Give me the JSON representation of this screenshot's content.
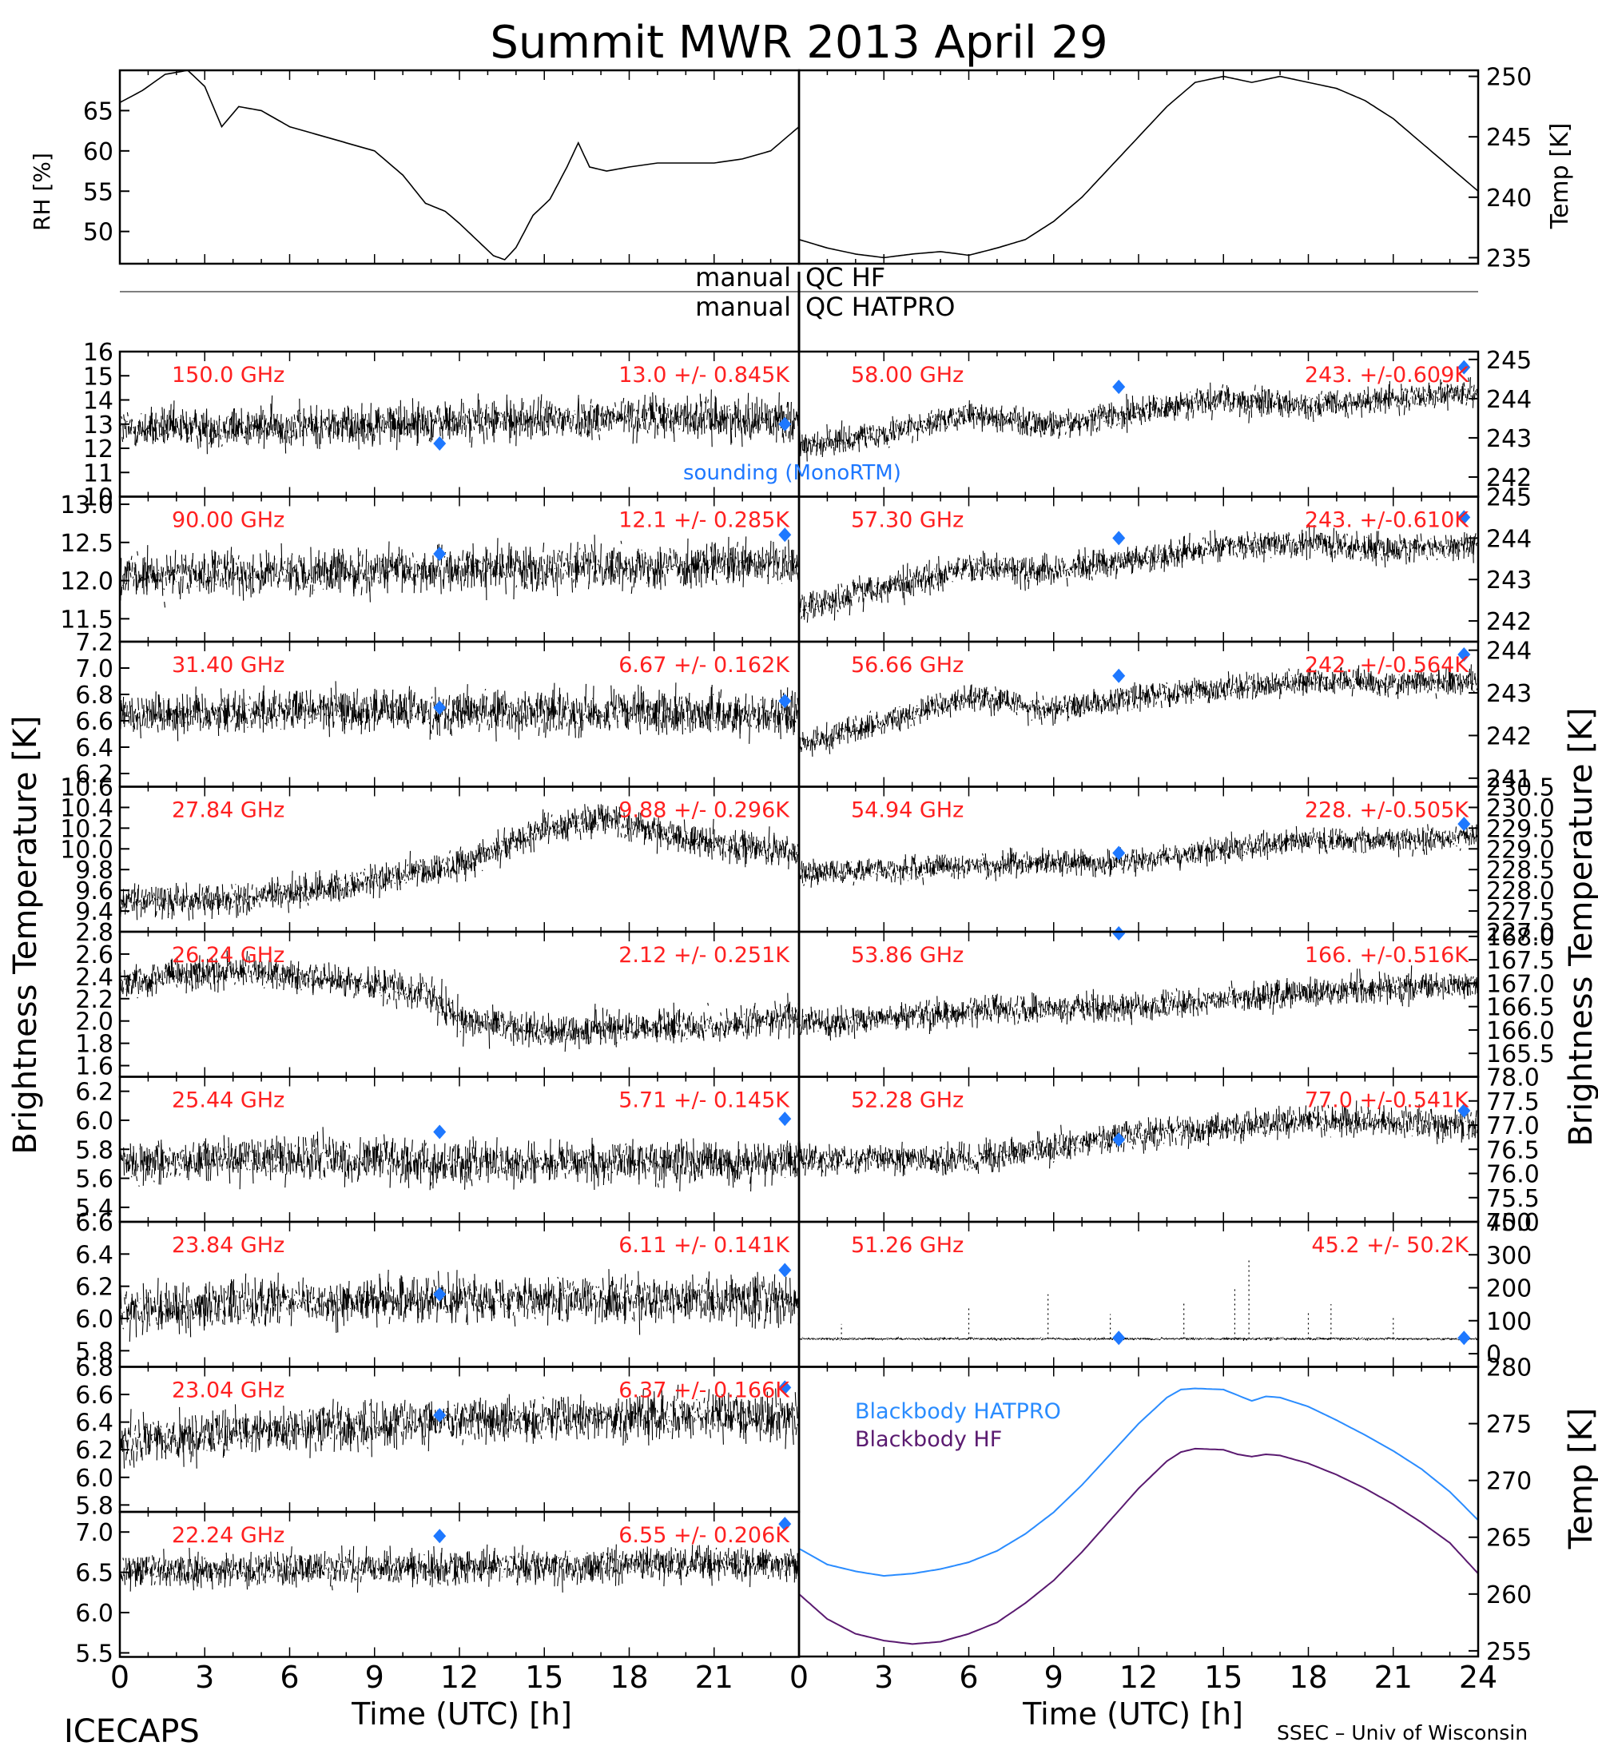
{
  "title": "Summit MWR 2013 April 29",
  "footer": {
    "left": "ICECAPS",
    "right": "SSEC – Univ of Wisconsin"
  },
  "axes_labels": {
    "rh": "RH [%]",
    "temp_top": "Temp [K]",
    "tb_left": "Brightness Temperature [K]",
    "tb_right": "Brightness Temperature [K]",
    "temp_bottom": "Temp [K]",
    "xlabel": "Time (UTC) [h]"
  },
  "qc": {
    "hf_left": "manual",
    "hf_right": "QC HF",
    "hatpro_left": "manual",
    "hatpro_right": "QC HATPRO"
  },
  "sounding_label": "sounding (MonoRTM)",
  "blackbody": {
    "hatpro_label": "Blackbody HATPRO",
    "hf_label": "Blackbody HF"
  },
  "colors": {
    "label_red": "#ff2020",
    "sounding_blue": "#1e78ff",
    "hatpro_line": "#2a8cff",
    "hf_line": "#5a1a70",
    "data": "#000000"
  },
  "chart_data": [
    {
      "type": "line",
      "id": "rh",
      "ylabel": "RH [%]",
      "xlim": [
        0,
        24
      ],
      "ylim": [
        46,
        70
      ],
      "yticks": [
        50,
        55,
        60,
        65
      ],
      "x": [
        0,
        0.8,
        1.6,
        2.4,
        3.0,
        3.6,
        4.2,
        5.0,
        6.0,
        7.0,
        8.0,
        9.0,
        10.0,
        10.8,
        11.5,
        12.0,
        12.6,
        13.2,
        13.6,
        14.0,
        14.6,
        15.2,
        15.8,
        16.2,
        16.6,
        17.2,
        18.0,
        19.0,
        20.0,
        21.0,
        22.0,
        23.0,
        24.0
      ],
      "y": [
        66,
        67.5,
        69.5,
        70,
        68,
        63,
        65.5,
        65,
        63,
        62,
        61,
        60,
        57,
        53.5,
        52.5,
        51,
        49,
        47,
        46.5,
        48,
        52,
        54,
        58,
        61,
        58,
        57.5,
        58,
        58.5,
        58.5,
        58.5,
        59,
        60,
        63
      ]
    },
    {
      "type": "line",
      "id": "temp",
      "ylabel": "Temp [K]",
      "xlim": [
        0,
        24
      ],
      "ylim": [
        234.5,
        250.5
      ],
      "yticks": [
        235,
        240,
        245,
        250
      ],
      "x": [
        0,
        1,
        2,
        3,
        4,
        5,
        6,
        7,
        8,
        9,
        10,
        11,
        12,
        13,
        14,
        15,
        16,
        17,
        18,
        19,
        20,
        21,
        22,
        23,
        24
      ],
      "y": [
        236.5,
        235.8,
        235.3,
        235,
        235.3,
        235.5,
        235.2,
        235.8,
        236.5,
        238,
        240,
        242.5,
        245,
        247.5,
        249.5,
        250,
        249.5,
        250,
        249.5,
        249,
        248,
        246.5,
        244.5,
        242.5,
        240.5
      ]
    },
    {
      "type": "scatter",
      "id": "ch150",
      "freq": "150.0 GHz",
      "stats": "13.0 +/- 0.845K",
      "ylim": [
        10,
        16
      ],
      "yticks": [
        10,
        11,
        12,
        13,
        14,
        15,
        16
      ],
      "trend_x": [
        0,
        6,
        12,
        18,
        24
      ],
      "trend_y": [
        12.8,
        12.9,
        13.1,
        13.3,
        13.2
      ],
      "spread": 0.845,
      "sounding": [
        {
          "x": 11.3,
          "y": 12.2
        },
        {
          "x": 23.5,
          "y": 13.0
        }
      ]
    },
    {
      "type": "scatter",
      "id": "ch90",
      "freq": "90.00 GHz",
      "stats": "12.1 +/- 0.285K",
      "ylim": [
        11.2,
        13.1
      ],
      "yticks": [
        11.5,
        12.0,
        12.5,
        13.0
      ],
      "trend_x": [
        0,
        6,
        12,
        18,
        24
      ],
      "trend_y": [
        12.05,
        12.1,
        12.15,
        12.2,
        12.2
      ],
      "spread": 0.285,
      "sounding": [
        {
          "x": 11.3,
          "y": 12.35
        },
        {
          "x": 23.5,
          "y": 12.6
        }
      ]
    },
    {
      "type": "scatter",
      "id": "ch31",
      "freq": "31.40 GHz",
      "stats": "6.67 +/- 0.162K",
      "ylim": [
        6.1,
        7.2
      ],
      "yticks": [
        6.2,
        6.4,
        6.6,
        6.8,
        7.0,
        7.2
      ],
      "trend_x": [
        0,
        6,
        12,
        18,
        24
      ],
      "trend_y": [
        6.65,
        6.68,
        6.67,
        6.66,
        6.65
      ],
      "spread": 0.162,
      "sounding": [
        {
          "x": 11.3,
          "y": 6.7
        },
        {
          "x": 23.5,
          "y": 6.75
        }
      ]
    },
    {
      "type": "scatter",
      "id": "ch27",
      "freq": "27.84 GHz",
      "stats": "9.88 +/- 0.296K",
      "ylim": [
        9.2,
        10.6
      ],
      "yticks": [
        9.4,
        9.6,
        9.8,
        10.0,
        10.2,
        10.4,
        10.6
      ],
      "trend_x": [
        0,
        4,
        8,
        12,
        15,
        17,
        20,
        24
      ],
      "trend_y": [
        9.5,
        9.5,
        9.65,
        9.85,
        10.2,
        10.3,
        10.1,
        9.95
      ],
      "spread": 0.15,
      "sounding": []
    },
    {
      "type": "scatter",
      "id": "ch26",
      "freq": "26.24 GHz",
      "stats": "2.12 +/- 0.251K",
      "ylim": [
        1.5,
        2.8
      ],
      "yticks": [
        1.6,
        1.8,
        2.0,
        2.2,
        2.4,
        2.6,
        2.8
      ],
      "trend_x": [
        0,
        4,
        8,
        11,
        12,
        15,
        18,
        21,
        24
      ],
      "trend_y": [
        2.35,
        2.45,
        2.35,
        2.25,
        2.0,
        1.9,
        1.95,
        1.95,
        2.05
      ],
      "spread": 0.15,
      "sounding": []
    },
    {
      "type": "scatter",
      "id": "ch25",
      "freq": "25.44 GHz",
      "stats": "5.71 +/- 0.145K",
      "ylim": [
        5.3,
        6.3
      ],
      "yticks": [
        5.4,
        5.6,
        5.8,
        6.0,
        6.2
      ],
      "trend_x": [
        0,
        6,
        12,
        18,
        24
      ],
      "trend_y": [
        5.7,
        5.75,
        5.7,
        5.72,
        5.7
      ],
      "spread": 0.145,
      "sounding": [
        {
          "x": 11.3,
          "y": 5.92
        },
        {
          "x": 23.5,
          "y": 6.01
        }
      ]
    },
    {
      "type": "scatter",
      "id": "ch23_84",
      "freq": "23.84 GHz",
      "stats": "6.11 +/- 0.141K",
      "ylim": [
        5.7,
        6.6
      ],
      "yticks": [
        5.8,
        6.0,
        6.2,
        6.4,
        6.6
      ],
      "trend_x": [
        0,
        6,
        12,
        18,
        24
      ],
      "trend_y": [
        6.05,
        6.1,
        6.12,
        6.12,
        6.1
      ],
      "spread": 0.141,
      "sounding": [
        {
          "x": 11.3,
          "y": 6.15
        },
        {
          "x": 23.5,
          "y": 6.3
        }
      ]
    },
    {
      "type": "scatter",
      "id": "ch23_04",
      "freq": "23.04 GHz",
      "stats": "6.37 +/- 0.166K",
      "ylim": [
        5.75,
        6.8
      ],
      "yticks": [
        5.8,
        6.0,
        6.2,
        6.4,
        6.6,
        6.8
      ],
      "trend_x": [
        0,
        6,
        12,
        18,
        24
      ],
      "trend_y": [
        6.25,
        6.35,
        6.4,
        6.45,
        6.45
      ],
      "spread": 0.166,
      "sounding": [
        {
          "x": 11.3,
          "y": 6.45
        },
        {
          "x": 23.5,
          "y": 6.65
        }
      ]
    },
    {
      "type": "scatter",
      "id": "ch22",
      "freq": "22.24 GHz",
      "stats": "6.55 +/- 0.206K",
      "ylim": [
        5.45,
        7.25
      ],
      "yticks": [
        5.5,
        6.0,
        6.5,
        7.0
      ],
      "trend_x": [
        0,
        6,
        12,
        18,
        24
      ],
      "trend_y": [
        6.5,
        6.55,
        6.55,
        6.6,
        6.6
      ],
      "spread": 0.206,
      "sounding": [
        {
          "x": 11.3,
          "y": 6.95
        },
        {
          "x": 23.5,
          "y": 7.1
        }
      ]
    },
    {
      "type": "scatter",
      "id": "ch58",
      "freq": "58.00 GHz",
      "stats": "243. +/-0.609K",
      "ylim": [
        241.5,
        245.2
      ],
      "yticks": [
        242,
        243,
        244,
        245
      ],
      "trend_x": [
        0,
        3,
        6,
        9,
        12,
        15,
        18,
        21,
        24
      ],
      "trend_y": [
        242.8,
        243.1,
        243.6,
        243.3,
        243.7,
        244.0,
        243.8,
        244.0,
        244.2
      ],
      "spread": 0.35,
      "sounding": [
        {
          "x": 11.3,
          "y": 244.3
        },
        {
          "x": 23.5,
          "y": 244.8
        }
      ]
    },
    {
      "type": "scatter",
      "id": "ch57_30",
      "freq": "57.30 GHz",
      "stats": "243. +/-0.610K",
      "ylim": [
        241.5,
        245
      ],
      "yticks": [
        242,
        243,
        244,
        245
      ],
      "trend_x": [
        0,
        3,
        6,
        9,
        12,
        15,
        18,
        21,
        24
      ],
      "trend_y": [
        242.3,
        242.8,
        243.3,
        243.2,
        243.5,
        243.8,
        243.9,
        243.7,
        243.9
      ],
      "spread": 0.35,
      "sounding": [
        {
          "x": 11.3,
          "y": 244.0
        },
        {
          "x": 23.5,
          "y": 244.5
        }
      ]
    },
    {
      "type": "scatter",
      "id": "ch56",
      "freq": "56.66 GHz",
      "stats": "242. +/-0.564K",
      "ylim": [
        240.8,
        244.2
      ],
      "yticks": [
        241,
        242,
        243,
        244
      ],
      "trend_x": [
        0,
        3,
        6,
        9,
        12,
        15,
        18,
        21,
        24
      ],
      "trend_y": [
        241.8,
        242.3,
        242.9,
        242.6,
        242.9,
        243.1,
        243.3,
        243.2,
        243.3
      ],
      "spread": 0.3,
      "sounding": [
        {
          "x": 11.3,
          "y": 243.4
        },
        {
          "x": 23.5,
          "y": 243.9
        }
      ]
    },
    {
      "type": "scatter",
      "id": "ch54",
      "freq": "54.94 GHz",
      "stats": "228. +/-0.505K",
      "ylim": [
        227,
        230.5
      ],
      "yticks": [
        227.0,
        227.5,
        228.0,
        228.5,
        229.0,
        229.5,
        230.0,
        230.5
      ],
      "trend_x": [
        0,
        6,
        12,
        15,
        18,
        21,
        24
      ],
      "trend_y": [
        228.4,
        228.6,
        228.7,
        229.0,
        229.2,
        229.2,
        229.3
      ],
      "spread": 0.3,
      "sounding": [
        {
          "x": 11.3,
          "y": 228.9
        },
        {
          "x": 23.5,
          "y": 229.6
        }
      ]
    },
    {
      "type": "scatter",
      "id": "ch53",
      "freq": "53.86 GHz",
      "stats": "166. +/-0.516K",
      "ylim": [
        165,
        168.1
      ],
      "yticks": [
        165.5,
        166.0,
        166.5,
        167.0,
        167.5,
        168.0
      ],
      "trend_x": [
        0,
        6,
        12,
        18,
        24
      ],
      "trend_y": [
        166.1,
        166.4,
        166.5,
        166.8,
        167.0
      ],
      "spread": 0.3,
      "sounding": [
        {
          "x": 11.3,
          "y": 168.1
        }
      ]
    },
    {
      "type": "scatter",
      "id": "ch52",
      "freq": "52.28 GHz",
      "stats": "77.0 +/-0.541K",
      "ylim": [
        75,
        78
      ],
      "yticks": [
        75.0,
        75.5,
        76.0,
        76.5,
        77.0,
        77.5,
        78.0
      ],
      "trend_x": [
        0,
        6,
        12,
        18,
        24
      ],
      "trend_y": [
        76.3,
        76.3,
        76.8,
        77.1,
        77.0
      ],
      "spread": 0.3,
      "sounding": [
        {
          "x": 11.3,
          "y": 76.7
        },
        {
          "x": 23.5,
          "y": 77.3
        }
      ]
    },
    {
      "type": "scatter",
      "id": "ch51",
      "freq": "51.26 GHz",
      "stats": "45.2 +/- 50.2K",
      "ylim": [
        -40,
        400
      ],
      "yticks": [
        0,
        100,
        200,
        300,
        400
      ],
      "trend_x": [
        0,
        24
      ],
      "trend_y": [
        45,
        45
      ],
      "spread": 4,
      "spikes": [
        {
          "x": 6.0,
          "y": 140
        },
        {
          "x": 8.8,
          "y": 180
        },
        {
          "x": 11.0,
          "y": 120
        },
        {
          "x": 13.6,
          "y": 160
        },
        {
          "x": 15.4,
          "y": 200
        },
        {
          "x": 15.9,
          "y": 290
        },
        {
          "x": 18.0,
          "y": 130
        },
        {
          "x": 18.8,
          "y": 150
        },
        {
          "x": 1.5,
          "y": 90
        },
        {
          "x": 21.0,
          "y": 110
        }
      ],
      "sounding": [
        {
          "x": 11.3,
          "y": 48
        },
        {
          "x": 23.5,
          "y": 48
        }
      ]
    },
    {
      "type": "line",
      "id": "blackbody",
      "ylabel": "Temp [K]",
      "xlim": [
        0,
        24
      ],
      "ylim": [
        254.5,
        280
      ],
      "yticks": [
        255,
        260,
        265,
        270,
        275,
        280
      ],
      "x": [
        0,
        1,
        2,
        3,
        4,
        5,
        6,
        7,
        8,
        9,
        10,
        11,
        12,
        13,
        13.5,
        14,
        15,
        15.5,
        16,
        16.5,
        17,
        18,
        19,
        20,
        21,
        22,
        23,
        24
      ],
      "series": [
        {
          "name": "Blackbody HATPRO",
          "color": "#2a8cff",
          "values": [
            264,
            262.6,
            262,
            261.6,
            261.8,
            262.2,
            262.8,
            263.8,
            265.3,
            267.2,
            269.6,
            272.3,
            275,
            277.3,
            278,
            278.1,
            278,
            277.5,
            277,
            277.4,
            277.3,
            276.5,
            275.3,
            274,
            272.6,
            271,
            269,
            266.5
          ]
        },
        {
          "name": "Blackbody HF",
          "color": "#5a1a70",
          "values": [
            260,
            257.8,
            256.5,
            255.9,
            255.6,
            255.8,
            256.5,
            257.5,
            259.2,
            261.2,
            263.7,
            266.5,
            269.3,
            271.7,
            272.5,
            272.8,
            272.7,
            272.3,
            272.1,
            272.3,
            272.2,
            271.5,
            270.5,
            269.3,
            267.9,
            266.3,
            264.5,
            261.8
          ]
        }
      ]
    }
  ],
  "x_ticks": [
    "0",
    "3",
    "6",
    "9",
    "12",
    "15",
    "18",
    "21"
  ],
  "x_ticks_right": [
    "0",
    "3",
    "6",
    "9",
    "12",
    "15",
    "18",
    "21",
    "24"
  ]
}
